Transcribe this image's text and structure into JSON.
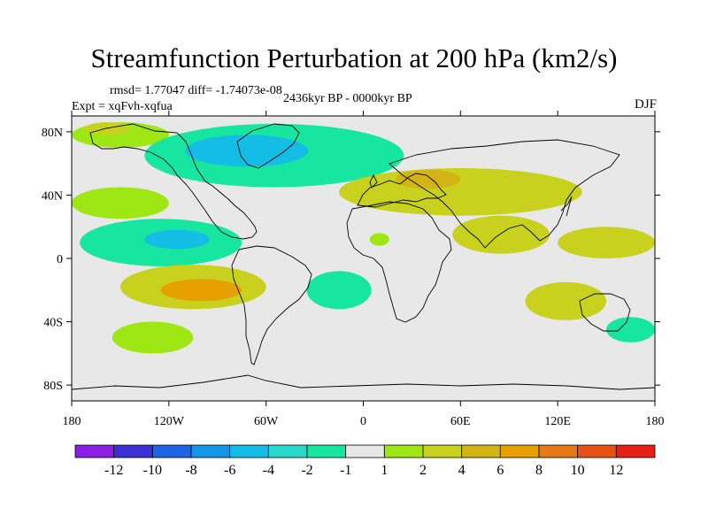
{
  "chart_data": {
    "type": "contour-map",
    "title": "Streamfunction Perturbation at 200 hPa (km2/s)",
    "stats": "rmsd= 1.77047 diff= -1.74073e-08",
    "experiment": "Expt = xqFvh-xqfua",
    "period": "2436kyr BP - 0000kyr BP",
    "season": "DJF",
    "xlim": [
      -180,
      180
    ],
    "ylim": [
      -90,
      90
    ],
    "x_ticks": [
      {
        "value": -180,
        "label": "180"
      },
      {
        "value": -120,
        "label": "120W"
      },
      {
        "value": -60,
        "label": "60W"
      },
      {
        "value": 0,
        "label": "0"
      },
      {
        "value": 60,
        "label": "60E"
      },
      {
        "value": 120,
        "label": "120E"
      },
      {
        "value": 180,
        "label": "180"
      }
    ],
    "y_ticks": [
      {
        "value": 80,
        "label": "80N"
      },
      {
        "value": 40,
        "label": "40N"
      },
      {
        "value": 0,
        "label": "0"
      },
      {
        "value": -40,
        "label": "40S"
      },
      {
        "value": -80,
        "label": "80S"
      }
    ],
    "colorbar": {
      "colors": [
        "#8c1fe6",
        "#3c2fd6",
        "#1e64e6",
        "#1496e8",
        "#14bde6",
        "#28d8c8",
        "#17e6a0",
        "#e8e8e8",
        "#9ee614",
        "#c8d21e",
        "#d2b414",
        "#e6a000",
        "#e87814",
        "#e85014",
        "#e61e14"
      ],
      "labels": [
        "-12",
        "-10",
        "-8",
        "-6",
        "-4",
        "-2",
        "-1",
        "1",
        "2",
        "4",
        "6",
        "8",
        "10",
        "12"
      ]
    },
    "regions": [
      {
        "name": "arctic-positive",
        "lon": -150,
        "lat": 78,
        "rlon": 30,
        "rlat": 8,
        "level": 8
      },
      {
        "name": "arctic-positive-core",
        "lon": -158,
        "lat": 82,
        "rlon": 14,
        "rlat": 4,
        "level": 9
      },
      {
        "name": "north-atlantic-negative",
        "lon": -55,
        "lat": 65,
        "rlon": 80,
        "rlat": 20,
        "level": 6
      },
      {
        "name": "north-atlantic-negative-core",
        "lon": -72,
        "lat": 68,
        "rlon": 38,
        "rlat": 10,
        "level": 4
      },
      {
        "name": "north-pacific-positive",
        "lon": -150,
        "lat": 35,
        "rlon": 30,
        "rlat": 10,
        "level": 8
      },
      {
        "name": "subtropical-pacific-negative",
        "lon": -125,
        "lat": 10,
        "rlon": 50,
        "rlat": 15,
        "level": 6
      },
      {
        "name": "subtropical-pacific-negative-core",
        "lon": -115,
        "lat": 12,
        "rlon": 20,
        "rlat": 6,
        "level": 4
      },
      {
        "name": "south-pacific-positive",
        "lon": -105,
        "lat": -18,
        "rlon": 45,
        "rlat": 14,
        "level": 9
      },
      {
        "name": "south-pacific-positive-core",
        "lon": -100,
        "lat": -20,
        "rlon": 25,
        "rlat": 7,
        "level": 11
      },
      {
        "name": "south-atlantic-negative",
        "lon": -15,
        "lat": -20,
        "rlon": 20,
        "rlat": 12,
        "level": 6
      },
      {
        "name": "eurasia-positive",
        "lon": 60,
        "lat": 42,
        "rlon": 75,
        "rlat": 15,
        "level": 9
      },
      {
        "name": "eurasia-positive-core",
        "lon": 40,
        "lat": 50,
        "rlon": 20,
        "rlat": 6,
        "level": 10
      },
      {
        "name": "india-positive",
        "lon": 85,
        "lat": 15,
        "rlon": 30,
        "rlat": 12,
        "level": 9
      },
      {
        "name": "africa-small-positive",
        "lon": 10,
        "lat": 12,
        "rlon": 6,
        "rlat": 4,
        "level": 8
      },
      {
        "name": "west-pacific-positive",
        "lon": 150,
        "lat": 10,
        "rlon": 30,
        "rlat": 10,
        "level": 9
      },
      {
        "name": "australia-positive",
        "lon": 125,
        "lat": -27,
        "rlon": 25,
        "rlat": 12,
        "level": 9
      },
      {
        "name": "southern-ocean-positive",
        "lon": -130,
        "lat": -50,
        "rlon": 25,
        "rlat": 10,
        "level": 8
      },
      {
        "name": "dateline-south-negative",
        "lon": 165,
        "lat": -45,
        "rlon": 15,
        "rlat": 8,
        "level": 6
      }
    ]
  }
}
